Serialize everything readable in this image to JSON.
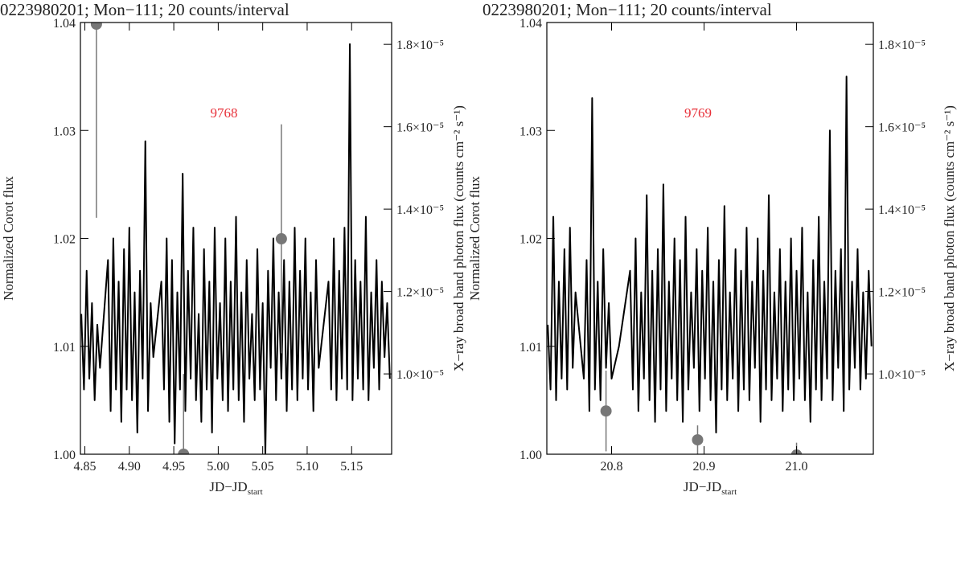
{
  "chart_data": [
    {
      "type": "line",
      "title": "0223980201; Mon−111; 20 counts/interval",
      "annotation": "9768",
      "x_label": {
        "main": "JD−JD",
        "sub": "start"
      },
      "y_label": "Normalized Corot flux",
      "y2_label": "X−ray broad band photon flux (counts cm⁻² s⁻¹)",
      "xlim": [
        4.845,
        5.195
      ],
      "ylim": [
        1.0,
        1.04
      ],
      "y2lim": [
        8.05e-06,
        1.853e-05
      ],
      "xticks": [
        4.85,
        {
          "value": 4.9,
          "label": "4.90"
        },
        4.95,
        {
          "value": 5.0,
          "label": "5.00"
        },
        5.05,
        {
          "value": 5.1,
          "label": "5.10"
        },
        5.15
      ],
      "yticks": [
        {
          "value": 1.0,
          "label": "1.00"
        },
        1.01,
        1.02,
        1.03,
        1.04
      ],
      "y2ticks": [
        {
          "value": 1e-05,
          "label": "1.0×10⁻⁵"
        },
        {
          "value": 1.2e-05,
          "label": "1.2×10⁻⁵"
        },
        {
          "value": 1.4e-05,
          "label": "1.4×10⁻⁵"
        },
        {
          "value": 1.6e-05,
          "label": "1.6×10⁻⁵"
        },
        {
          "value": 1.8e-05,
          "label": "1.8×10⁻⁵"
        }
      ],
      "series": [
        {
          "color": "#000000",
          "x": [
            4.846,
            4.849,
            4.852,
            4.855,
            4.858,
            4.861,
            4.864,
            4.867,
            4.876,
            4.879,
            4.882,
            4.885,
            4.888,
            4.891,
            4.894,
            4.897,
            4.9,
            4.903,
            4.906,
            4.909,
            4.912,
            4.915,
            4.918,
            4.921,
            4.924,
            4.927,
            4.936,
            4.939,
            4.942,
            4.945,
            4.948,
            4.951,
            4.954,
            4.957,
            4.96,
            4.963,
            4.966,
            4.969,
            4.972,
            4.975,
            4.978,
            4.981,
            4.984,
            4.987,
            4.99,
            4.993,
            4.996,
            4.999,
            5.002,
            5.005,
            5.008,
            5.011,
            5.014,
            5.017,
            5.02,
            5.023,
            5.026,
            5.029,
            5.032,
            5.035,
            5.038,
            5.041,
            5.044,
            5.047,
            5.05,
            5.053,
            5.056,
            5.059,
            5.062,
            5.065,
            5.068,
            5.071,
            5.074,
            5.077,
            5.08,
            5.083,
            5.086,
            5.089,
            5.092,
            5.095,
            5.098,
            5.101,
            5.104,
            5.107,
            5.11,
            5.113,
            5.124,
            5.127,
            5.13,
            5.133,
            5.136,
            5.139,
            5.142,
            5.145,
            5.148,
            5.151,
            5.154,
            5.157,
            5.16,
            5.163,
            5.166,
            5.169,
            5.172,
            5.175,
            5.178,
            5.181,
            5.184,
            5.187,
            5.19,
            5.193
          ],
          "values": [
            1.013,
            1.006,
            1.017,
            1.007,
            1.014,
            1.005,
            1.012,
            1.008,
            1.018,
            1.004,
            1.02,
            1.006,
            1.016,
            1.003,
            1.019,
            1.006,
            1.021,
            1.005,
            1.015,
            1.002,
            1.017,
            1.007,
            1.029,
            1.004,
            1.014,
            1.009,
            1.016,
            1.006,
            1.02,
            1.003,
            1.018,
            1.001,
            1.015,
            1.006,
            1.026,
            1.004,
            1.017,
            1.007,
            1.021,
            1.005,
            1.013,
            1.003,
            1.019,
            1.006,
            1.016,
            1.002,
            1.021,
            1.007,
            1.014,
            1.005,
            1.02,
            1.004,
            1.016,
            1.006,
            1.022,
            1.005,
            1.015,
            1.003,
            1.018,
            1.007,
            1.013,
            1.005,
            1.019,
            1.006,
            1.014,
            1.0,
            1.017,
            1.008,
            1.02,
            1.005,
            1.015,
            1.007,
            1.018,
            1.004,
            1.016,
            1.006,
            1.021,
            1.005,
            1.017,
            1.007,
            1.02,
            1.006,
            1.015,
            1.004,
            1.018,
            1.008,
            1.016,
            1.006,
            1.02,
            1.005,
            1.017,
            1.007,
            1.021,
            1.006,
            1.038,
            1.005,
            1.018,
            1.007,
            1.016,
            1.006,
            1.022,
            1.005,
            1.015,
            1.008,
            1.018,
            1.006,
            1.016,
            1.009,
            1.014,
            1.007
          ]
        },
        {
          "color": "#777777",
          "axis": "y2",
          "x": [
            4.863,
            4.961,
            5.071
          ],
          "values": [
            1.849e-05,
            8.05e-06,
            1.328e-05
          ],
          "errors": [
            4.7e-06,
            1.95e-06,
            2.78e-06
          ]
        }
      ]
    },
    {
      "type": "line",
      "title": "0223980201; Mon−111; 20 counts/interval",
      "annotation": "9769",
      "x_label": {
        "main": "JD−JD",
        "sub": "start"
      },
      "y_label": "Normalized Corot flux",
      "y2_label": "X−ray broad band photon flux (counts cm⁻² s⁻¹)",
      "xlim": [
        20.73,
        21.083
      ],
      "ylim": [
        1.0,
        1.04
      ],
      "y2lim": [
        8.05e-06,
        1.853e-05
      ],
      "xticks": [
        20.8,
        20.9,
        {
          "value": 21.0,
          "label": "21.0"
        }
      ],
      "yticks": [
        {
          "value": 1.0,
          "label": "1.00"
        },
        1.01,
        1.02,
        1.03,
        1.04
      ],
      "y2ticks": [
        {
          "value": 1e-05,
          "label": "1.0×10⁻⁵"
        },
        {
          "value": 1.2e-05,
          "label": "1.2×10⁻⁵"
        },
        {
          "value": 1.4e-05,
          "label": "1.4×10⁻⁵"
        },
        {
          "value": 1.6e-05,
          "label": "1.6×10⁻⁵"
        },
        {
          "value": 1.8e-05,
          "label": "1.8×10⁻⁵"
        }
      ],
      "series": [
        {
          "color": "#000000",
          "x": [
            20.731,
            20.734,
            20.737,
            20.74,
            20.743,
            20.746,
            20.749,
            20.752,
            20.755,
            20.758,
            20.761,
            20.77,
            20.773,
            20.776,
            20.779,
            20.782,
            20.785,
            20.788,
            20.791,
            20.794,
            20.797,
            20.8,
            20.808,
            20.82,
            20.823,
            20.826,
            20.829,
            20.832,
            20.835,
            20.838,
            20.841,
            20.844,
            20.847,
            20.85,
            20.853,
            20.856,
            20.859,
            20.862,
            20.865,
            20.868,
            20.871,
            20.874,
            20.877,
            20.88,
            20.883,
            20.886,
            20.889,
            20.892,
            20.895,
            20.898,
            20.901,
            20.904,
            20.907,
            20.91,
            20.913,
            20.916,
            20.919,
            20.922,
            20.925,
            20.928,
            20.931,
            20.934,
            20.937,
            20.94,
            20.943,
            20.946,
            20.949,
            20.952,
            20.955,
            20.958,
            20.961,
            20.964,
            20.967,
            20.97,
            20.973,
            20.976,
            20.979,
            20.982,
            20.985,
            20.988,
            20.991,
            20.994,
            20.997,
            21.0,
            21.003,
            21.006,
            21.009,
            21.012,
            21.015,
            21.018,
            21.021,
            21.024,
            21.027,
            21.03,
            21.033,
            21.036,
            21.039,
            21.042,
            21.045,
            21.048,
            21.051,
            21.054,
            21.057,
            21.06,
            21.063,
            21.066,
            21.069,
            21.072,
            21.075,
            21.078,
            21.081
          ],
          "values": [
            1.012,
            1.006,
            1.022,
            1.005,
            1.016,
            1.007,
            1.019,
            1.006,
            1.021,
            1.008,
            1.015,
            1.007,
            1.018,
            1.004,
            1.033,
            1.006,
            1.016,
            1.005,
            1.019,
            1.008,
            1.014,
            1.007,
            1.01,
            1.017,
            1.006,
            1.02,
            1.004,
            1.015,
            1.007,
            1.024,
            1.005,
            1.017,
            1.003,
            1.019,
            1.006,
            1.025,
            1.004,
            1.016,
            1.007,
            1.02,
            1.005,
            1.018,
            1.003,
            1.022,
            1.006,
            1.015,
            1.008,
            1.019,
            1.004,
            1.017,
            1.007,
            1.021,
            1.005,
            1.016,
            1.002,
            1.018,
            1.006,
            1.023,
            1.005,
            1.015,
            1.007,
            1.019,
            1.004,
            1.017,
            1.006,
            1.021,
            1.005,
            1.016,
            1.008,
            1.02,
            1.003,
            1.017,
            1.006,
            1.024,
            1.005,
            1.015,
            1.007,
            1.019,
            1.004,
            1.016,
            1.006,
            1.02,
            1.005,
            1.017,
            1.007,
            1.021,
            1.005,
            1.015,
            1.003,
            1.018,
            1.006,
            1.022,
            1.005,
            1.016,
            1.007,
            1.03,
            1.005,
            1.017,
            1.008,
            1.019,
            1.004,
            1.035,
            1.006,
            1.016,
            1.008,
            1.019,
            1.006,
            1.015,
            1.007,
            1.017,
            1.01
          ]
        },
        {
          "color": "#777777",
          "axis": "y2",
          "x": [
            20.794,
            20.893,
            21.0
          ],
          "values": [
            9.1e-06,
            8.4e-06,
            8.03e-06
          ],
          "errors": [
            9.8e-07,
            3.5e-07,
            3e-07
          ]
        }
      ]
    }
  ]
}
